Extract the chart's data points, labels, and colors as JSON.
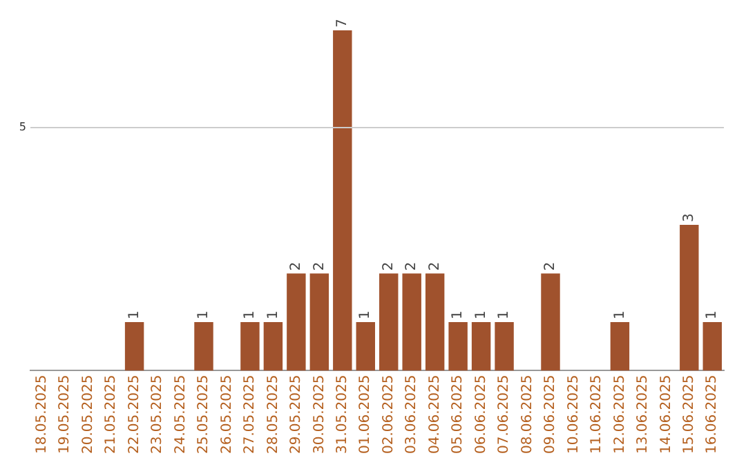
{
  "chart_data": {
    "type": "bar",
    "categories": [
      "18.05.2025",
      "19.05.2025",
      "20.05.2025",
      "21.05.2025",
      "22.05.2025",
      "23.05.2025",
      "24.05.2025",
      "25.05.2025",
      "26.05.2025",
      "27.05.2025",
      "28.05.2025",
      "29.05.2025",
      "30.05.2025",
      "31.05.2025",
      "01.06.2025",
      "02.06.2025",
      "03.06.2025",
      "04.06.2025",
      "05.06.2025",
      "06.06.2025",
      "07.06.2025",
      "08.06.2025",
      "09.06.2025",
      "10.06.2025",
      "11.06.2025",
      "12.06.2025",
      "13.06.2025",
      "14.06.2025",
      "15.06.2025",
      "16.06.2025"
    ],
    "values": [
      0,
      0,
      0,
      0,
      1,
      0,
      0,
      1,
      0,
      1,
      1,
      2,
      2,
      7,
      1,
      2,
      2,
      2,
      1,
      1,
      1,
      0,
      2,
      0,
      0,
      1,
      0,
      0,
      3,
      1
    ],
    "value_labels": [
      null,
      null,
      null,
      null,
      "1",
      null,
      null,
      "1",
      null,
      "1",
      "1",
      "2",
      "2",
      "7",
      "1",
      "2",
      "2",
      "2",
      "1",
      "1",
      "1",
      null,
      "2",
      null,
      null,
      "1",
      null,
      null,
      "3",
      "1"
    ],
    "color": "#a0522d",
    "ref_lines": [
      {
        "axis": "y",
        "value": 5,
        "label": "5",
        "color": "#cccccc"
      }
    ],
    "legend": false
  }
}
